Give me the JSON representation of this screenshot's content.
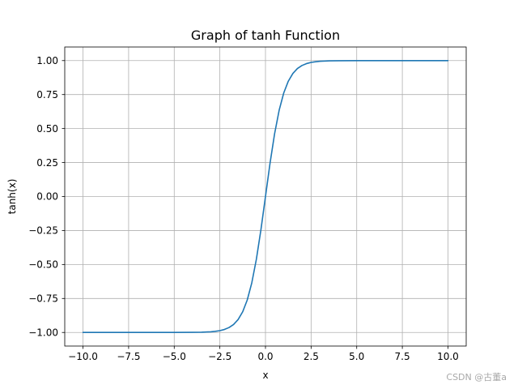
{
  "chart_data": {
    "type": "line",
    "title": "Graph of tanh Function",
    "xlabel": "x",
    "ylabel": "tanh(x)",
    "xlim": [
      -11,
      11
    ],
    "ylim": [
      -1.1,
      1.1
    ],
    "xticks": [
      -10,
      -7.5,
      -5,
      -2.5,
      0,
      2.5,
      5,
      7.5,
      10
    ],
    "xtick_labels": [
      "−10.0",
      "−7.5",
      "−5.0",
      "−2.5",
      "0.0",
      "2.5",
      "5.0",
      "7.5",
      "10.0"
    ],
    "yticks": [
      -1,
      -0.75,
      -0.5,
      -0.25,
      0,
      0.25,
      0.5,
      0.75,
      1
    ],
    "ytick_labels": [
      "−1.00",
      "−0.75",
      "−0.50",
      "−0.25",
      "0.00",
      "0.25",
      "0.50",
      "0.75",
      "1.00"
    ],
    "grid": true,
    "series": [
      {
        "color": "#1f77b4",
        "x": [
          -10,
          -5,
          -4,
          -3.5,
          -3,
          -2.75,
          -2.5,
          -2.25,
          -2,
          -1.75,
          -1.5,
          -1.25,
          -1,
          -0.75,
          -0.5,
          -0.25,
          0,
          0.25,
          0.5,
          0.75,
          1,
          1.25,
          1.5,
          1.75,
          2,
          2.25,
          2.5,
          2.75,
          3,
          3.5,
          4,
          5,
          10
        ],
        "y": [
          -1,
          -0.9999,
          -0.9993,
          -0.9982,
          -0.9951,
          -0.9918,
          -0.9866,
          -0.978,
          -0.964,
          -0.9414,
          -0.9051,
          -0.8483,
          -0.7616,
          -0.6351,
          -0.4621,
          -0.2449,
          0,
          0.2449,
          0.4621,
          0.6351,
          0.7616,
          0.8483,
          0.9051,
          0.9414,
          0.964,
          0.978,
          0.9866,
          0.9918,
          0.9951,
          0.9982,
          0.9993,
          0.9999,
          1
        ]
      }
    ]
  },
  "watermark": "CSDN @古董a"
}
